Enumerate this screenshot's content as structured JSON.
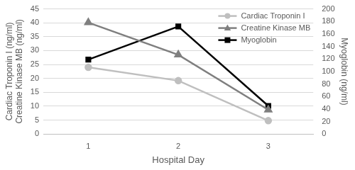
{
  "chart_data": {
    "type": "line",
    "x_label": "Hospital Day",
    "y_label": [
      "Cardiac Troponin I (ng/ml)",
      "Creatine Kinase MB (ng/ml)"
    ],
    "y2_label": "Myoglobin (ng/ml)",
    "categories": [
      "1",
      "2",
      "3"
    ],
    "series": [
      {
        "name": "Cardiac Troponin I",
        "color": "#bfbfbf",
        "marker": "circle",
        "values": [
          24,
          19.2,
          4.8
        ]
      },
      {
        "name": "Creatine Kinase MB",
        "color": "#7f7f7f",
        "marker": "triangle",
        "values": [
          40.1,
          28.5,
          8.7
        ]
      },
      {
        "name": "Myoglobin",
        "color": "#000000",
        "marker": "square",
        "axis": "y2",
        "values": [
          119,
          172,
          45
        ]
      }
    ],
    "ylim": [
      0,
      45
    ],
    "yticks": [
      0,
      5,
      10,
      15,
      20,
      25,
      30,
      35,
      40,
      45
    ],
    "y2lim": [
      0,
      200
    ],
    "y2ticks": [
      0,
      20,
      40,
      60,
      80,
      100,
      120,
      140,
      160,
      180,
      200
    ],
    "grid": true,
    "legend": "upper right"
  }
}
